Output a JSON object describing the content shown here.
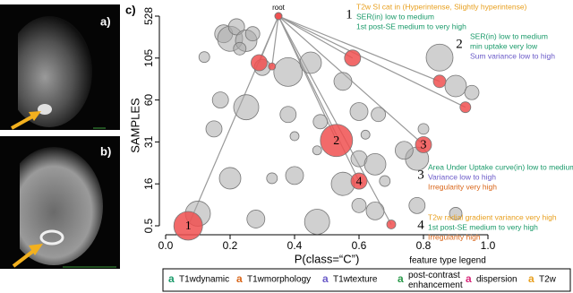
{
  "chart_data": {
    "type": "bubble",
    "panels": [
      "a)",
      "b)",
      "c)"
    ],
    "ylabel": "SAMPLES",
    "xlabel": "P(class=“C”)",
    "xlim": [
      0,
      1
    ],
    "xticks": [
      {
        "value": 0,
        "label": "0.0"
      },
      0.2,
      0.4,
      0.6,
      0.8,
      {
        "value": 1,
        "label": "1.0"
      }
    ],
    "yscale": "tick-spaced",
    "yticks": [
      528,
      105,
      60,
      31,
      16,
      0.5
    ],
    "root": {
      "label": "root",
      "x": 0.35,
      "y": 528,
      "size": 4,
      "color": "#f05050"
    },
    "points": [
      {
        "x": 0.18,
        "y": 350,
        "size": 10,
        "color": "#aaaaaa"
      },
      {
        "x": 0.2,
        "y": 300,
        "size": 14,
        "color": "#aaaaaa"
      },
      {
        "x": 0.22,
        "y": 420,
        "size": 9,
        "color": "#aaaaaa"
      },
      {
        "x": 0.25,
        "y": 280,
        "size": 12,
        "color": "#aaaaaa"
      },
      {
        "x": 0.27,
        "y": 350,
        "size": 8,
        "color": "#aaaaaa"
      },
      {
        "x": 0.23,
        "y": 200,
        "size": 7,
        "color": "#aaaaaa"
      },
      {
        "x": 0.12,
        "y": 115,
        "size": 6,
        "color": "#aaaaaa"
      },
      {
        "x": 0.38,
        "y": 90,
        "size": 16,
        "color": "#aaaaaa"
      },
      {
        "x": 0.3,
        "y": 95,
        "size": 9,
        "color": "#aaaaaa"
      },
      {
        "x": 0.45,
        "y": 100,
        "size": 12,
        "color": "#aaaaaa"
      },
      {
        "x": 0.55,
        "y": 80,
        "size": 10,
        "color": "#aaaaaa"
      },
      {
        "x": 0.85,
        "y": 110,
        "size": 15,
        "color": "#aaaaaa"
      },
      {
        "x": 0.9,
        "y": 75,
        "size": 12,
        "color": "#aaaaaa"
      },
      {
        "x": 0.95,
        "y": 68,
        "size": 8,
        "color": "#aaaaaa"
      },
      {
        "x": 0.25,
        "y": 55,
        "size": 14,
        "color": "#aaaaaa"
      },
      {
        "x": 0.17,
        "y": 60,
        "size": 9,
        "color": "#aaaaaa"
      },
      {
        "x": 0.38,
        "y": 50,
        "size": 9,
        "color": "#aaaaaa"
      },
      {
        "x": 0.48,
        "y": 45,
        "size": 8,
        "color": "#aaaaaa"
      },
      {
        "x": 0.6,
        "y": 52,
        "size": 10,
        "color": "#aaaaaa"
      },
      {
        "x": 0.66,
        "y": 50,
        "size": 8,
        "color": "#aaaaaa"
      },
      {
        "x": 0.15,
        "y": 40,
        "size": 9,
        "color": "#aaaaaa"
      },
      {
        "x": 0.4,
        "y": 35,
        "size": 5,
        "color": "#aaaaaa"
      },
      {
        "x": 0.62,
        "y": 36,
        "size": 5,
        "color": "#aaaaaa"
      },
      {
        "x": 0.47,
        "y": 28,
        "size": 5,
        "color": "#aaaaaa"
      },
      {
        "x": 0.6,
        "y": 25,
        "size": 9,
        "color": "#aaaaaa"
      },
      {
        "x": 0.65,
        "y": 23,
        "size": 12,
        "color": "#aaaaaa"
      },
      {
        "x": 0.78,
        "y": 25,
        "size": 13,
        "color": "#aaaaaa"
      },
      {
        "x": 0.74,
        "y": 28,
        "size": 10,
        "color": "#aaaaaa"
      },
      {
        "x": 0.2,
        "y": 18,
        "size": 12,
        "color": "#aaaaaa"
      },
      {
        "x": 0.33,
        "y": 18,
        "size": 6,
        "color": "#aaaaaa"
      },
      {
        "x": 0.4,
        "y": 19,
        "size": 10,
        "color": "#aaaaaa"
      },
      {
        "x": 0.55,
        "y": 16,
        "size": 13,
        "color": "#aaaaaa"
      },
      {
        "x": 0.68,
        "y": 17,
        "size": 6,
        "color": "#aaaaaa"
      },
      {
        "x": 0.8,
        "y": 40,
        "size": 6,
        "color": "#aaaaaa"
      },
      {
        "x": 0.1,
        "y": 5,
        "size": 14,
        "color": "#aaaaaa"
      },
      {
        "x": 0.28,
        "y": 3,
        "size": 10,
        "color": "#aaaaaa"
      },
      {
        "x": 0.47,
        "y": 2,
        "size": 14,
        "color": "#aaaaaa"
      },
      {
        "x": 0.6,
        "y": 8,
        "size": 8,
        "color": "#aaaaaa"
      },
      {
        "x": 0.65,
        "y": 6,
        "size": 10,
        "color": "#aaaaaa"
      },
      {
        "x": 0.78,
        "y": 8,
        "size": 9,
        "color": "#aaaaaa"
      },
      {
        "x": 0.9,
        "y": 5,
        "size": 7,
        "color": "#aaaaaa"
      },
      {
        "x": 0.29,
        "y": 100,
        "size": 9,
        "color": "#f05050"
      },
      {
        "x": 0.33,
        "y": 96,
        "size": 4,
        "color": "#f05050"
      },
      {
        "x": 0.58,
        "y": 105,
        "size": 9,
        "color": "#f05050"
      },
      {
        "x": 0.85,
        "y": 80,
        "size": 7,
        "color": "#f05050"
      },
      {
        "x": 0.93,
        "y": 55,
        "size": 6,
        "color": "#f05050"
      },
      {
        "x": 0.7,
        "y": 1,
        "size": 5,
        "color": "#f05050"
      },
      {
        "x": 0.07,
        "y": 0.5,
        "size": 16,
        "color": "#f05050",
        "label": "1"
      },
      {
        "x": 0.53,
        "y": 32,
        "size": 18,
        "color": "#f05050",
        "label": "2"
      },
      {
        "x": 0.8,
        "y": 30,
        "size": 9,
        "color": "#f05050",
        "label": "3"
      },
      {
        "x": 0.6,
        "y": 17,
        "size": 9,
        "color": "#f05050",
        "label": "4"
      }
    ],
    "annotations": [
      {
        "number": "1",
        "lines": [
          {
            "text": "T2w SI cat in (Hyperintense, Slightly hyperintense)",
            "color": "#e8a020"
          },
          {
            "text": "SER(in) low to medium",
            "color": "#1a9a6a"
          },
          {
            "text": "1st post-SE medium to very high",
            "color": "#1a9a6a"
          }
        ]
      },
      {
        "number": "2",
        "lines": [
          {
            "text": "SER(in) low to medium",
            "color": "#1a9a6a"
          },
          {
            "text": "min uptake very low",
            "color": "#1a9a6a"
          },
          {
            "text": "Sum variance low to high",
            "color": "#6a5ac8"
          }
        ]
      },
      {
        "number": "3",
        "lines": [
          {
            "text": "Area Under Uptake curve(in) low to medium",
            "color": "#1a9a6a"
          },
          {
            "text": "Variance low to high",
            "color": "#6a5ac8"
          },
          {
            "text": "Irregularity very high",
            "color": "#d9661a"
          }
        ]
      },
      {
        "number": "4",
        "lines": [
          {
            "text": "T2w radial gradient variance very high",
            "color": "#e8a020"
          },
          {
            "text": "1st post-SE medium to very high",
            "color": "#1a9a6a"
          },
          {
            "text": "Irregularity high",
            "color": "#d9661a"
          }
        ]
      }
    ],
    "legend_title": "feature type legend",
    "legend": [
      {
        "symbol": "a",
        "label": "T1wdynamic",
        "color": "#1a9a6a"
      },
      {
        "symbol": "a",
        "label": "T1wmorphology",
        "color": "#d9661a"
      },
      {
        "symbol": "a",
        "label": "T1wtexture",
        "color": "#6a5ac8"
      },
      {
        "symbol": "a",
        "label": "post-contrast enhancement",
        "color": "#2a9a4a"
      },
      {
        "symbol": "a",
        "label": "dispersion",
        "color": "#d8287a"
      },
      {
        "symbol": "a",
        "label": "T2w",
        "color": "#e8a020"
      }
    ]
  }
}
